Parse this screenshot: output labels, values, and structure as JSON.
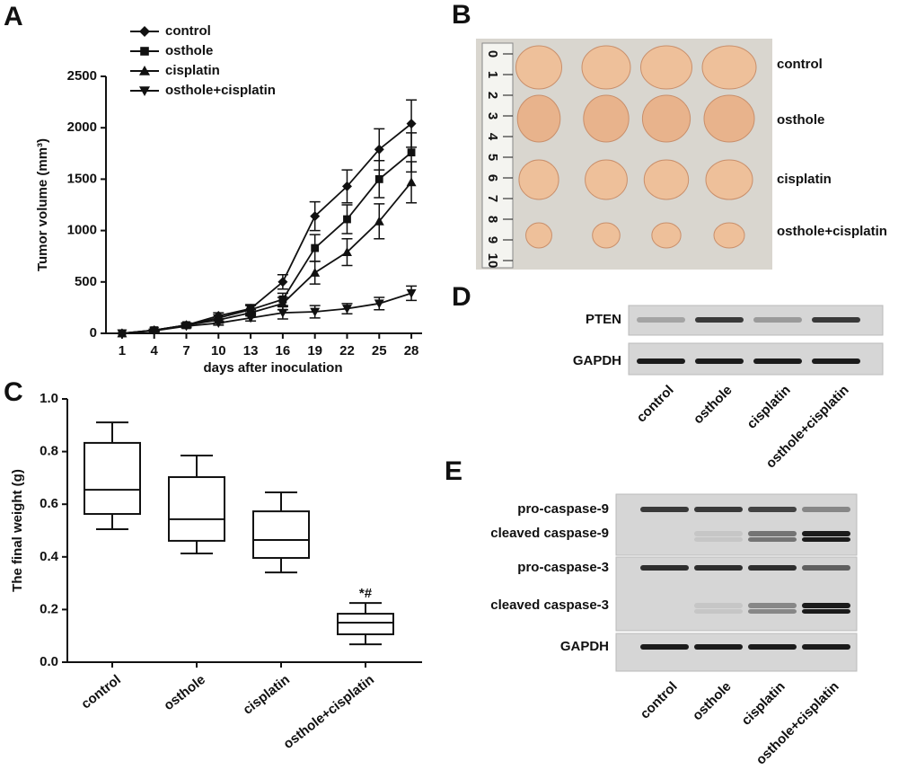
{
  "chart_data": [
    {
      "type": "line",
      "panel_label": "A",
      "xlabel": "days after inoculation",
      "ylabel": "Tumor volume (mm³)",
      "x": [
        1,
        4,
        7,
        10,
        13,
        16,
        19,
        22,
        25,
        28
      ],
      "xlim": [
        -0.5,
        29
      ],
      "xticks": [
        1,
        4,
        7,
        10,
        13,
        16,
        19,
        22,
        25,
        28
      ],
      "ylim": [
        0,
        2500
      ],
      "yticks": [
        0,
        500,
        1000,
        1500,
        2000,
        2500
      ],
      "legend": "upper left",
      "series": [
        {
          "name": "control",
          "marker": "diamond",
          "color": "#111111",
          "values": [
            0,
            30,
            80,
            170,
            240,
            500,
            1140,
            1430,
            1790,
            2040
          ],
          "errors": [
            0,
            10,
            20,
            30,
            40,
            70,
            140,
            160,
            200,
            230
          ]
        },
        {
          "name": "osthole",
          "marker": "square",
          "color": "#111111",
          "values": [
            0,
            30,
            80,
            150,
            230,
            330,
            830,
            1110,
            1500,
            1760
          ],
          "errors": [
            0,
            10,
            20,
            30,
            40,
            60,
            130,
            140,
            180,
            190
          ]
        },
        {
          "name": "cisplatin",
          "marker": "triangle-up",
          "color": "#111111",
          "values": [
            0,
            30,
            80,
            130,
            200,
            290,
            590,
            790,
            1090,
            1470
          ],
          "errors": [
            0,
            10,
            20,
            30,
            30,
            60,
            110,
            130,
            170,
            200
          ]
        },
        {
          "name": "osthole+cisplatin",
          "marker": "triangle-down",
          "color": "#111111",
          "values": [
            0,
            25,
            70,
            100,
            150,
            200,
            210,
            240,
            290,
            390
          ],
          "errors": [
            0,
            10,
            15,
            20,
            30,
            60,
            60,
            50,
            60,
            70
          ]
        }
      ]
    },
    {
      "type": "box",
      "panel_label": "C",
      "ylabel": "The final weight (g)",
      "color": "#111111",
      "categories": [
        "control",
        "osthole",
        "cisplatin",
        "osthole+cisplatin"
      ],
      "ylim": [
        0,
        1.0
      ],
      "yticks": [
        {
          "value": 0,
          "label": "0.0"
        },
        0.2,
        0.4,
        0.6,
        0.8,
        {
          "value": 1.0,
          "label": "1.0"
        }
      ],
      "min": [
        0.505,
        0.413,
        0.341,
        0.068
      ],
      "q1": [
        0.563,
        0.461,
        0.396,
        0.106
      ],
      "median": [
        0.655,
        0.543,
        0.464,
        0.15
      ],
      "q3": [
        0.833,
        0.703,
        0.573,
        0.184
      ],
      "max": [
        0.911,
        0.785,
        0.645,
        0.225
      ],
      "significance": [
        null,
        null,
        null,
        "*#"
      ]
    }
  ],
  "panels": {
    "B": {
      "label": "B",
      "ruler": [
        0,
        1,
        2,
        3,
        4,
        5,
        6,
        7,
        8,
        9,
        10
      ],
      "rows": [
        "control",
        "osthole",
        "cisplatin",
        "osthole+cisplatin"
      ]
    },
    "D": {
      "label": "D",
      "rows": [
        "PTEN",
        "GAPDH"
      ],
      "lanes": [
        "control",
        "osthole",
        "cisplatin",
        "osthole+cisplatin"
      ]
    },
    "E": {
      "label": "E",
      "rows": [
        "pro-caspase-9",
        "cleaved caspase-9",
        "pro-caspase-3",
        "cleaved caspase-3",
        "GAPDH"
      ],
      "lanes": [
        "control",
        "osthole",
        "cisplatin",
        "osthole+cisplatin"
      ]
    }
  }
}
